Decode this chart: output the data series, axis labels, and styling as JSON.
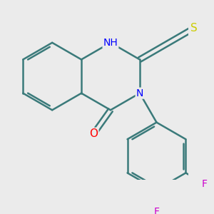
{
  "background_color": "#ebebeb",
  "bond_color": "#3a7a7a",
  "bond_width": 1.8,
  "atom_colors": {
    "N": "#0000ff",
    "O": "#ff0000",
    "S": "#cccc00",
    "F": "#cc00cc",
    "H_color": "#5588ff"
  },
  "font_size": 10,
  "figsize": [
    3.0,
    3.0
  ],
  "dpi": 100
}
